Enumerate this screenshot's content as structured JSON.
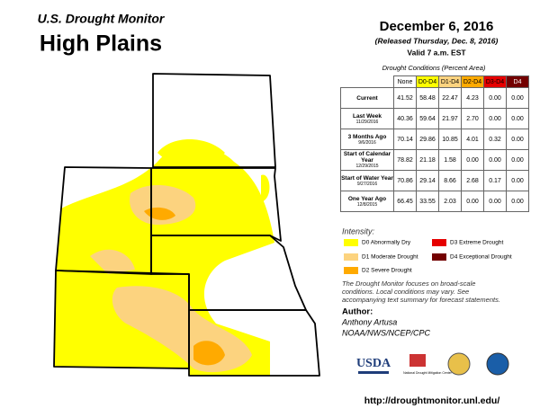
{
  "header": {
    "series_title": "U.S. Drought Monitor",
    "region": "High Plains",
    "date": "December 6, 2016",
    "released": "(Released Thursday, Dec. 8, 2016)",
    "valid": "Valid 7 a.m. EST"
  },
  "table": {
    "caption": "Drought Conditions (Percent Area)",
    "columns": [
      "None",
      "D0-D4",
      "D1-D4",
      "D2-D4",
      "D3-D4",
      "D4"
    ],
    "rows": [
      {
        "label": "Current",
        "values": [
          "41.52",
          "58.48",
          "22.47",
          "4.23",
          "0.00",
          "0.00"
        ]
      },
      {
        "label": "Last Week",
        "date": "11/29/2016",
        "values": [
          "40.36",
          "59.64",
          "21.97",
          "2.70",
          "0.00",
          "0.00"
        ]
      },
      {
        "label": "3 Months Ago",
        "date": "9/6/2016",
        "values": [
          "70.14",
          "29.86",
          "10.85",
          "4.01",
          "0.32",
          "0.00"
        ]
      },
      {
        "label": "Start of Calendar Year",
        "date": "12/29/2015",
        "values": [
          "78.82",
          "21.18",
          "1.58",
          "0.00",
          "0.00",
          "0.00"
        ]
      },
      {
        "label": "Start of Water Year",
        "date": "9/27/2016",
        "values": [
          "70.86",
          "29.14",
          "8.66",
          "2.68",
          "0.17",
          "0.00"
        ]
      },
      {
        "label": "One Year Ago",
        "date": "12/8/2015",
        "values": [
          "66.45",
          "33.55",
          "2.03",
          "0.00",
          "0.00",
          "0.00"
        ]
      }
    ]
  },
  "legend": {
    "title": "Intensity:",
    "items": [
      "D0 Abnormally Dry",
      "D1 Moderate Drought",
      "D2 Severe Drought",
      "D3 Extreme Drought",
      "D4 Exceptional Drought"
    ]
  },
  "note": "The Drought Monitor focuses on broad-scale conditions. Local conditions may vary. See accompanying text summary for forecast statements.",
  "author": {
    "heading": "Author:",
    "name": "Anthony Artusa",
    "org": "NOAA/NWS/NCEP/CPC"
  },
  "logos": [
    "USDA",
    "National Drought Mitigation Center"
  ],
  "url": "http://droughtmonitor.unl.edu/"
}
